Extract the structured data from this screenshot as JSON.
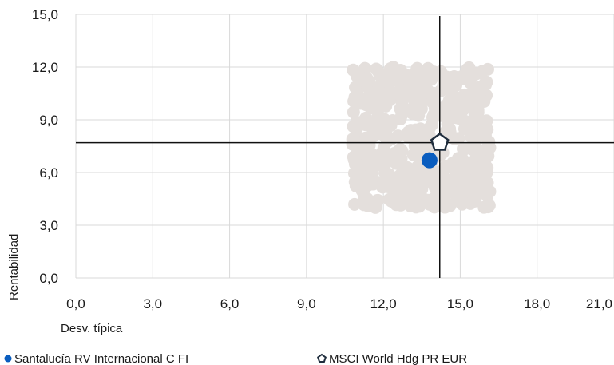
{
  "chart_data": {
    "type": "scatter",
    "xlabel": "Desv. típica",
    "ylabel": "Rentabilidad",
    "xlim": [
      0,
      21
    ],
    "ylim": [
      0,
      15
    ],
    "x_ticks": [
      "0,0",
      "3,0",
      "6,0",
      "9,0",
      "12,0",
      "15,0",
      "18,0",
      "21,0"
    ],
    "y_ticks": [
      "0,0",
      "3,0",
      "6,0",
      "9,0",
      "12,0",
      "15,0"
    ],
    "grid": true,
    "legend_placement": "bottom",
    "background_cloud": {
      "color": "#e4dfdc",
      "x_range": [
        10.8,
        16.2
      ],
      "y_range": [
        4.0,
        12.0
      ]
    },
    "crosshair": {
      "x": 14.2,
      "y": 7.7
    },
    "series": [
      {
        "name": "Santalucía RV Internacional C FI",
        "marker": "circle",
        "color": "#0a5dbf",
        "points": [
          {
            "x": 13.8,
            "y": 6.7
          }
        ]
      },
      {
        "name": "MSCI World Hdg PR EUR",
        "marker": "pentagon",
        "color": "#1f2d3d",
        "points": [
          {
            "x": 14.2,
            "y": 7.7
          }
        ]
      }
    ]
  }
}
